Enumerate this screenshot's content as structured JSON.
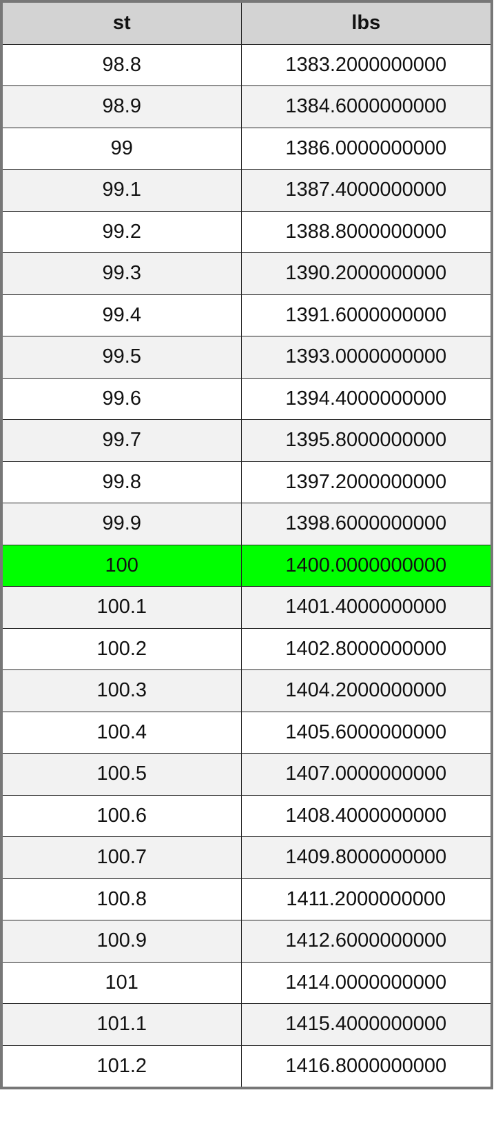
{
  "table": {
    "headers": [
      "st",
      "lbs"
    ],
    "highlight_color": "#00ff00",
    "highlighted_row": "100",
    "rows": [
      [
        "98.8",
        "1383.2000000000"
      ],
      [
        "98.9",
        "1384.6000000000"
      ],
      [
        "99",
        "1386.0000000000"
      ],
      [
        "99.1",
        "1387.4000000000"
      ],
      [
        "99.2",
        "1388.8000000000"
      ],
      [
        "99.3",
        "1390.2000000000"
      ],
      [
        "99.4",
        "1391.6000000000"
      ],
      [
        "99.5",
        "1393.0000000000"
      ],
      [
        "99.6",
        "1394.4000000000"
      ],
      [
        "99.7",
        "1395.8000000000"
      ],
      [
        "99.8",
        "1397.2000000000"
      ],
      [
        "99.9",
        "1398.6000000000"
      ],
      [
        "100",
        "1400.0000000000"
      ],
      [
        "100.1",
        "1401.4000000000"
      ],
      [
        "100.2",
        "1402.8000000000"
      ],
      [
        "100.3",
        "1404.2000000000"
      ],
      [
        "100.4",
        "1405.6000000000"
      ],
      [
        "100.5",
        "1407.0000000000"
      ],
      [
        "100.6",
        "1408.4000000000"
      ],
      [
        "100.7",
        "1409.8000000000"
      ],
      [
        "100.8",
        "1411.2000000000"
      ],
      [
        "100.9",
        "1412.6000000000"
      ],
      [
        "101",
        "1414.0000000000"
      ],
      [
        "101.1",
        "1415.4000000000"
      ],
      [
        "101.2",
        "1416.8000000000"
      ]
    ]
  }
}
